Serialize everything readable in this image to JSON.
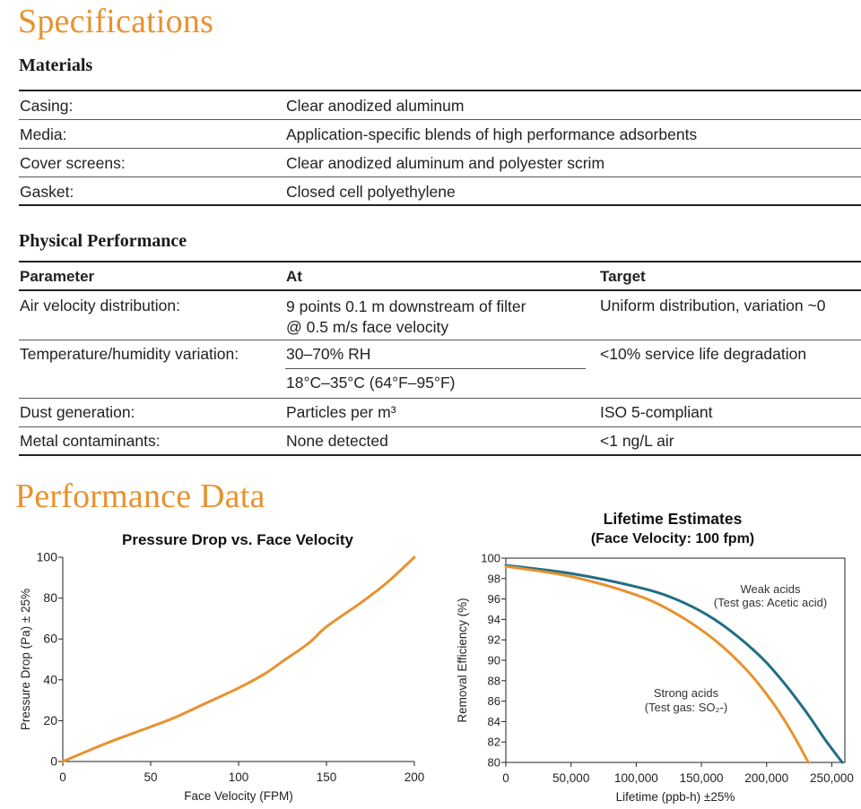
{
  "specifications": {
    "title": "Specifications",
    "materials": {
      "heading": "Materials",
      "rows": [
        {
          "label": "Casing:",
          "value": "Clear anodized aluminum"
        },
        {
          "label": "Media:",
          "value": "Application-specific blends of high performance adsorbents"
        },
        {
          "label": "Cover screens:",
          "value": "Clear anodized aluminum and polyester scrim"
        },
        {
          "label": "Gasket:",
          "value": "Closed cell polyethylene"
        }
      ]
    },
    "physical_performance": {
      "heading": "Physical Performance",
      "columns": [
        "Parameter",
        "At",
        "Target"
      ],
      "rows": [
        {
          "parameter": "Air velocity distribution:",
          "at_line1": "9 points 0.1 m downstream of filter",
          "at_line2": "@ 0.5 m/s face velocity",
          "target": "Uniform distribution, variation ~0"
        },
        {
          "parameter": "Temperature/humidity variation:",
          "at_line1": "30–70% RH",
          "at_line2": "18°C–35°C (64°F–95°F)",
          "target": "<10% service life degradation"
        },
        {
          "parameter": "Dust generation:",
          "at_line1": "Particles per m³",
          "target": "ISO 5-compliant"
        },
        {
          "parameter": "Metal contaminants:",
          "at_line1": "None detected",
          "target": "<1 ng/L air"
        }
      ]
    }
  },
  "performance_data": {
    "title": "Performance Data"
  },
  "chart_data": [
    {
      "type": "line",
      "title": "Pressure Drop vs. Face Velocity",
      "xlabel": "Face Velocity (FPM)",
      "ylabel": "Pressure Drop (Pa) ± 25%",
      "xlim": [
        0,
        200
      ],
      "ylim": [
        0,
        100
      ],
      "xticks": [
        0,
        50,
        100,
        150,
        200
      ],
      "yticks": [
        0,
        20,
        40,
        60,
        80,
        100
      ],
      "grid": false,
      "series": [
        {
          "color": "#e8922e",
          "x": [
            0,
            25,
            50,
            65,
            80,
            100,
            115,
            125,
            140,
            150,
            170,
            185,
            200
          ],
          "y": [
            0,
            9,
            17,
            22,
            28,
            36,
            43,
            49,
            58,
            66,
            78,
            88,
            100
          ]
        }
      ]
    },
    {
      "type": "line",
      "title": "Lifetime Estimates",
      "subtitle": "(Face Velocity: 100 fpm)",
      "xlabel": "Lifetime (ppb-h) ±25%",
      "ylabel": "Removal Efficiency (%)",
      "xlim": [
        0,
        260000
      ],
      "ylim": [
        80,
        100
      ],
      "xticks": [
        0,
        50000,
        100000,
        150000,
        200000,
        250000
      ],
      "xtick_labels": [
        "0",
        "50,000",
        "100,000",
        "150,000",
        "200,000",
        "250,000"
      ],
      "yticks": [
        80,
        82,
        84,
        86,
        88,
        90,
        92,
        94,
        96,
        98,
        100
      ],
      "grid": false,
      "series": [
        {
          "name_line1": "Weak acids",
          "name_line2": "(Test gas: Acetic acid)",
          "color": "#1f6e85",
          "x": [
            0,
            50000,
            100000,
            130000,
            160000,
            190000,
            210000,
            230000,
            245000,
            258000
          ],
          "y": [
            99.3,
            98.5,
            97.2,
            96.0,
            94.0,
            91.0,
            88.3,
            85.0,
            82.2,
            80.0
          ]
        },
        {
          "name_line1": "Strong acids",
          "name_line2": "(Test gas: SO₂-)",
          "color": "#e8922e",
          "x": [
            0,
            50000,
            100000,
            130000,
            160000,
            185000,
            205000,
            220000,
            232000
          ],
          "y": [
            99.2,
            98.2,
            96.4,
            94.6,
            92.0,
            89.0,
            85.8,
            82.8,
            80.0
          ]
        }
      ]
    }
  ]
}
